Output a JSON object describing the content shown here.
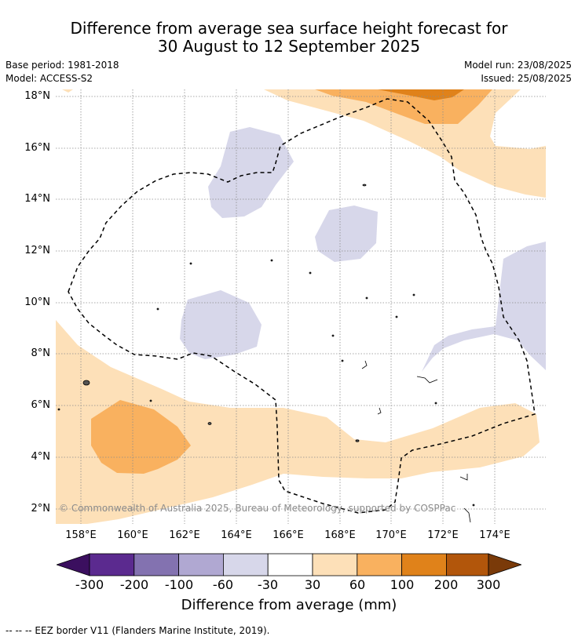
{
  "title_line1": "Difference from average sea surface height forecast for",
  "title_line2": "30 August to 12 September 2025",
  "base_period": "Base period: 1981-2018",
  "model": "Model: ACCESS-S2",
  "model_run": "Model run: 23/08/2025",
  "issued": "Issued: 25/08/2025",
  "lon_labels": [
    "158°E",
    "160°E",
    "162°E",
    "164°E",
    "166°E",
    "168°E",
    "170°E",
    "172°E",
    "174°E"
  ],
  "lat_labels": [
    "18°N",
    "16°N",
    "14°N",
    "12°N",
    "10°N",
    "8°N",
    "6°N",
    "4°N",
    "2°N"
  ],
  "copyright": "© Commonwealth of Australia 2025, Bureau of Meteorology, supported by COSPPac",
  "colorbar": {
    "labels": [
      "-300",
      "-200",
      "-100",
      "-60",
      "-30",
      "30",
      "60",
      "100",
      "200",
      "300"
    ],
    "colors": [
      "#3b0f5f",
      "#5b2a8f",
      "#8372b0",
      "#b0a8d2",
      "#d7d7ea",
      "#ffffff",
      "#fde0b8",
      "#f9b15f",
      "#e0821a",
      "#b2560b",
      "#7a3a09"
    ],
    "title": "Difference from average (mm)"
  },
  "eez_note": "--  --  -- EEZ border V11 (Flanders Marine Institute, 2019)."
}
